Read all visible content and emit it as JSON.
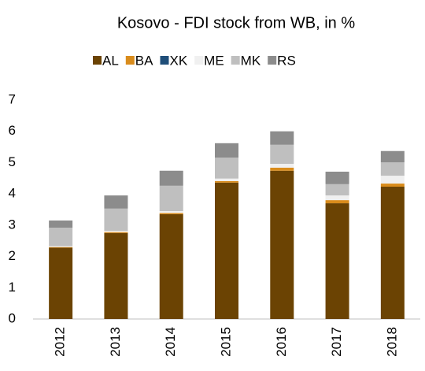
{
  "chart_data": {
    "type": "stacked_bar",
    "title": "Kosovo - FDI stock from WB, in %",
    "categories": [
      "2012",
      "2013",
      "2014",
      "2015",
      "2016",
      "2017",
      "2018"
    ],
    "series": [
      {
        "name": "AL",
        "color": "#6b4303",
        "values": [
          2.28,
          2.75,
          3.35,
          4.36,
          4.74,
          3.7,
          4.23
        ]
      },
      {
        "name": "BA",
        "color": "#d98c1c",
        "values": [
          0.02,
          0.03,
          0.04,
          0.05,
          0.1,
          0.1,
          0.1
        ]
      },
      {
        "name": "XK",
        "color": "#1f4e79",
        "values": [
          0,
          0,
          0,
          0,
          0,
          0,
          0
        ]
      },
      {
        "name": "ME",
        "color": "#f0f0f0",
        "values": [
          0.03,
          0.04,
          0.06,
          0.08,
          0.12,
          0.15,
          0.25
        ]
      },
      {
        "name": "MK",
        "color": "#bfbfbf",
        "values": [
          0.59,
          0.71,
          0.81,
          0.67,
          0.61,
          0.36,
          0.43
        ]
      },
      {
        "name": "RS",
        "color": "#8c8c8c",
        "values": [
          0.23,
          0.42,
          0.48,
          0.46,
          0.43,
          0.4,
          0.36
        ]
      }
    ],
    "ylim": [
      0,
      7
    ],
    "yticks": [
      0,
      1,
      2,
      3,
      4,
      5,
      6,
      7
    ],
    "grid": false,
    "legend": "top"
  }
}
